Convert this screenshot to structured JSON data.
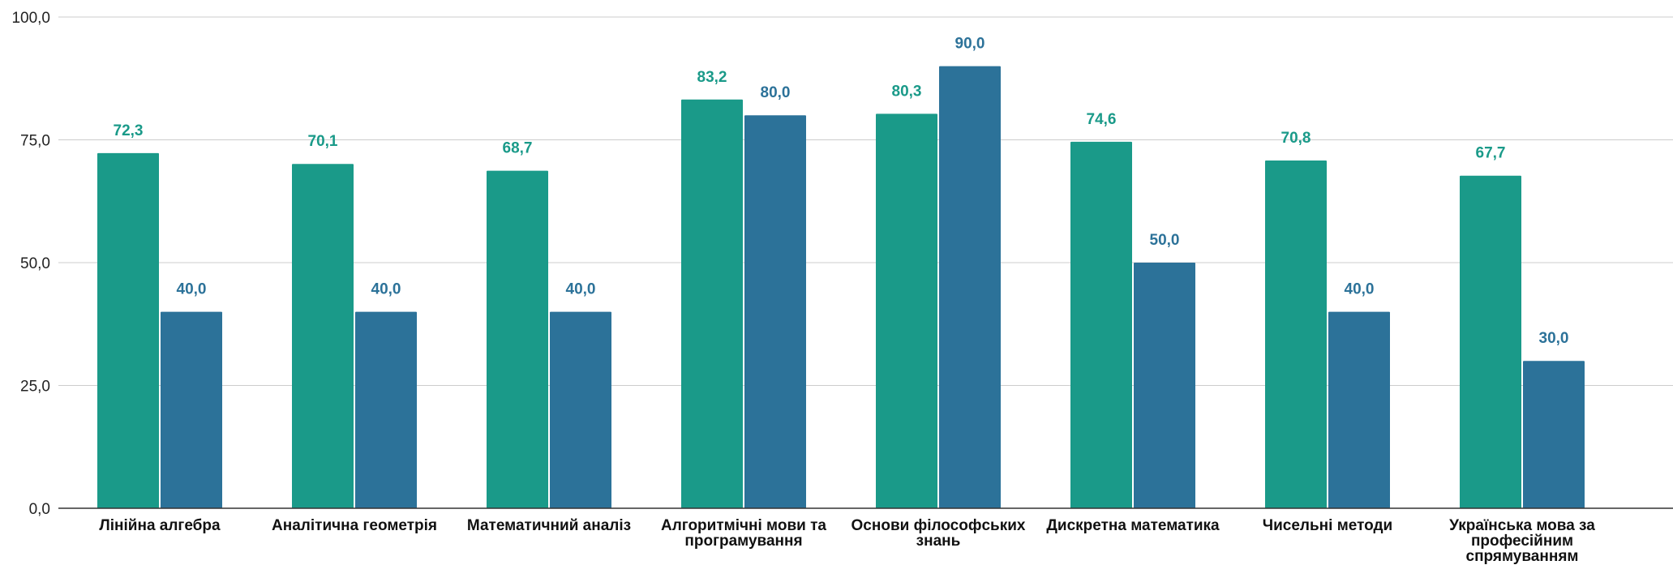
{
  "chart_data": {
    "type": "bar",
    "title": "",
    "xlabel": "",
    "ylabel": "",
    "ylim": [
      0,
      100
    ],
    "yticks": [
      0,
      25,
      50,
      75,
      100
    ],
    "ytick_labels": [
      "0,0",
      "25,0",
      "50,0",
      "75,0",
      "100,0"
    ],
    "grid": true,
    "legend": "none",
    "categories": [
      [
        "Лінійна алгебра"
      ],
      [
        "Аналітична геометрія"
      ],
      [
        "Математичний аналіз"
      ],
      [
        "Алгоритмічні мови та",
        "програмування"
      ],
      [
        "Основи філософських",
        "знань"
      ],
      [
        "Дискретна математика"
      ],
      [
        "Чисельні методи"
      ],
      [
        "Українська мова за",
        "професійним",
        "спрямуванням"
      ]
    ],
    "series": [
      {
        "color": "#1a9a89",
        "values": [
          72.3,
          70.1,
          68.7,
          83.2,
          80.3,
          74.6,
          70.8,
          67.7
        ],
        "labels": [
          "72,3",
          "70,1",
          "68,7",
          "83,2",
          "80,3",
          "74,6",
          "70,8",
          "67,7"
        ]
      },
      {
        "color": "#2c7299",
        "values": [
          40.0,
          40.0,
          40.0,
          80.0,
          90.0,
          50.0,
          40.0,
          30.0
        ],
        "labels": [
          "40,0",
          "40,0",
          "40,0",
          "80,0",
          "90,0",
          "50,0",
          "40,0",
          "30,0"
        ]
      }
    ],
    "colors": {
      "grid": "#cccccc",
      "axis": "#333333"
    }
  }
}
